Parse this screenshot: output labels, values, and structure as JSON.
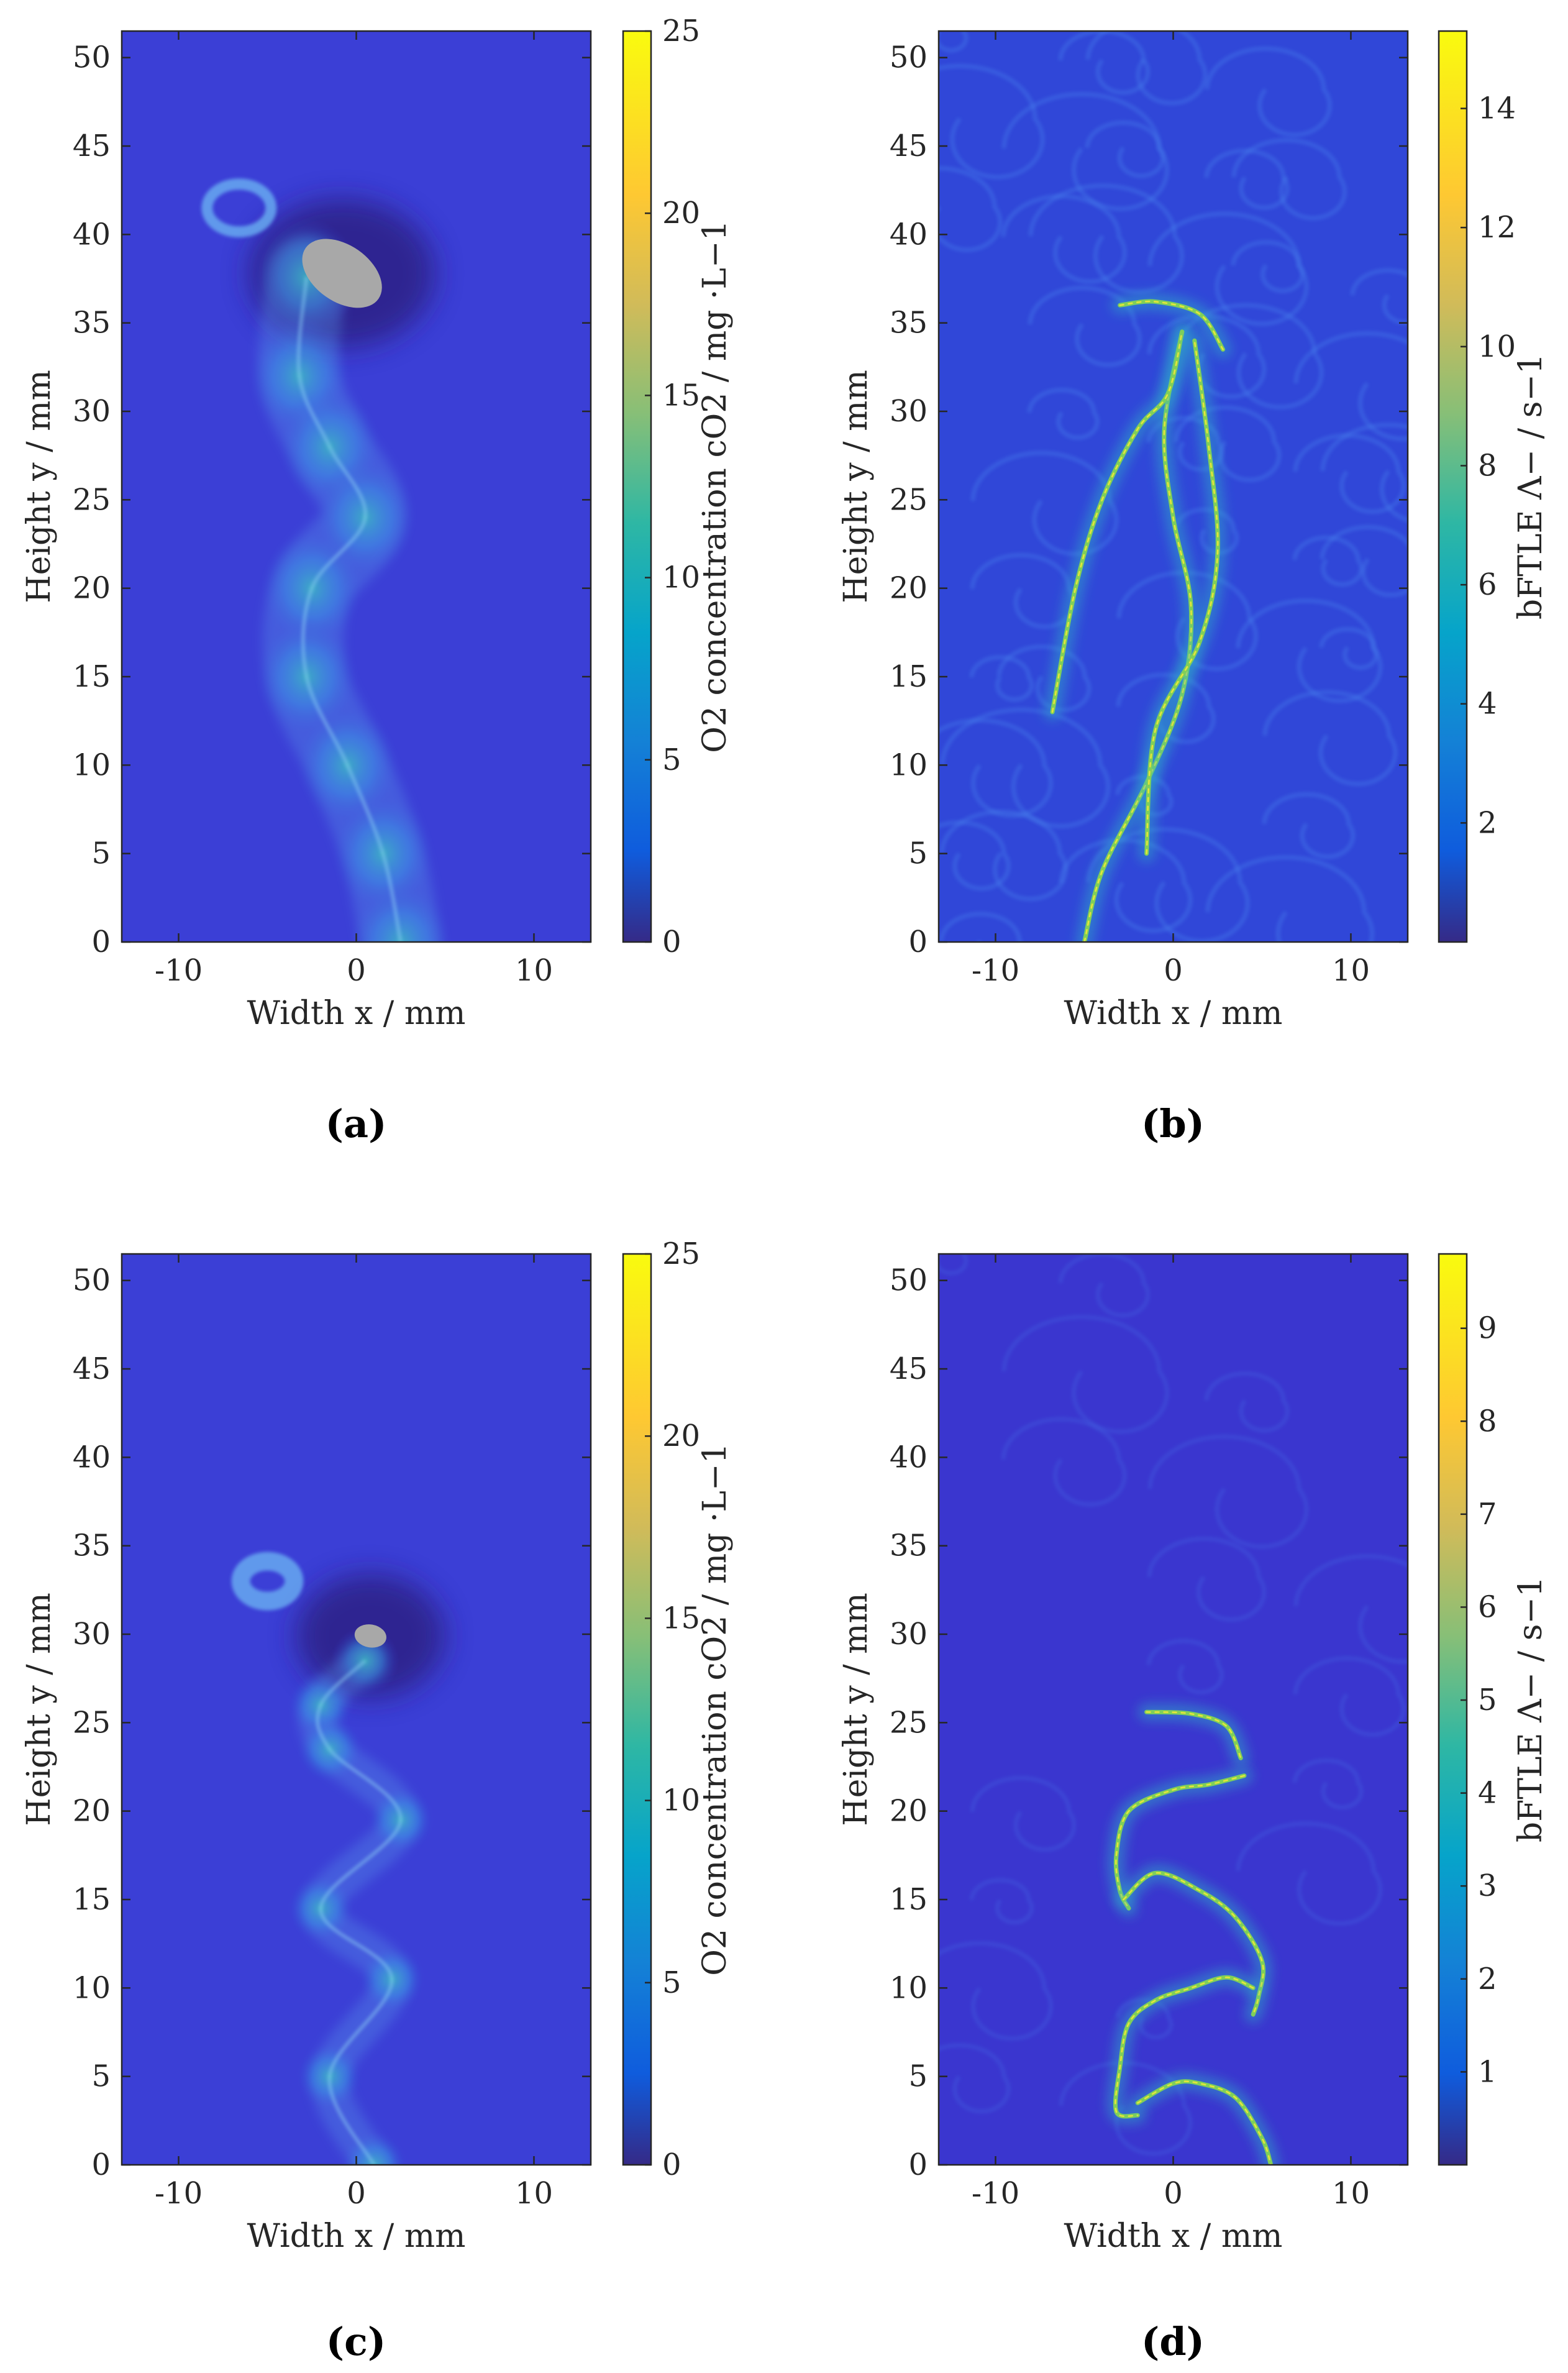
{
  "figure_title": "",
  "colors": {
    "parula_low": "#352a87",
    "parula_field": "#3b3fd6",
    "parula_mid": "#21a9c8",
    "parula_green": "#7ccd5c",
    "parula_high": "#f9fb0e",
    "particle_gray": "#a8a8a8"
  },
  "chart_data": [
    {
      "id": "a",
      "panel_label": "(a)",
      "type": "heatmap",
      "field": "oxygen_concentration",
      "xlabel": "Width x / mm",
      "ylabel": "Height y / mm",
      "xlim": [
        -13.2,
        13.2
      ],
      "ylim": [
        0,
        51.5
      ],
      "xticks": [
        -10,
        0,
        10
      ],
      "xtick_labels": [
        "-10",
        "0",
        "10"
      ],
      "yticks": [
        0,
        5,
        10,
        15,
        20,
        25,
        30,
        35,
        40,
        45,
        50
      ],
      "ytick_labels": [
        "0",
        "5",
        "10",
        "15",
        "20",
        "25",
        "30",
        "35",
        "40",
        "45",
        "50"
      ],
      "colorbar_label": "O2 concentration cO2 / mg ·L−1",
      "colorbar_range": [
        0,
        25
      ],
      "colorbar_ticks": [
        0,
        5,
        10,
        15,
        20,
        25
      ],
      "colorbar_tick_labels": [
        "0",
        "5",
        "10",
        "15",
        "20",
        "25"
      ],
      "particle": {
        "x": -0.8,
        "y": 37.8,
        "major_axis": 5.0,
        "minor_axis": 3.2,
        "angle_deg": 35
      },
      "wake_path": [
        [
          -2.8,
          37.6
        ],
        [
          -3.2,
          32
        ],
        [
          -1.5,
          28
        ],
        [
          0.5,
          24
        ],
        [
          -2.5,
          20
        ],
        [
          -2.8,
          15
        ],
        [
          -0.5,
          10
        ],
        [
          1.5,
          5
        ],
        [
          2.5,
          0
        ]
      ],
      "vortex_ring": {
        "x": -6.6,
        "y": 41.5,
        "size": 1.8
      }
    },
    {
      "id": "b",
      "panel_label": "(b)",
      "type": "heatmap",
      "field": "bFTLE",
      "xlabel": "Width x / mm",
      "ylabel": "Height y / mm",
      "xlim": [
        -13.2,
        13.2
      ],
      "ylim": [
        0,
        51.5
      ],
      "xticks": [
        -10,
        0,
        10
      ],
      "xtick_labels": [
        "-10",
        "0",
        "10"
      ],
      "yticks": [
        0,
        5,
        10,
        15,
        20,
        25,
        30,
        35,
        40,
        45,
        50
      ],
      "ytick_labels": [
        "0",
        "5",
        "10",
        "15",
        "20",
        "25",
        "30",
        "35",
        "40",
        "45",
        "50"
      ],
      "colorbar_label": "bFTLE Λ− / s−1",
      "colorbar_range": [
        0,
        15.3
      ],
      "colorbar_ticks": [
        2,
        4,
        6,
        8,
        10,
        12,
        14
      ],
      "colorbar_tick_labels": [
        "2",
        "4",
        "6",
        "8",
        "10",
        "12",
        "14"
      ],
      "ridges": [
        [
          [
            -5,
            0
          ],
          [
            -4,
            4
          ],
          [
            -1.5,
            9
          ],
          [
            0.5,
            14
          ],
          [
            1,
            19
          ],
          [
            0,
            24
          ],
          [
            -0.5,
            29
          ],
          [
            0.5,
            34.5
          ]
        ],
        [
          [
            -6.8,
            13
          ],
          [
            -5.5,
            20
          ],
          [
            -4,
            25
          ],
          [
            -2,
            29
          ],
          [
            -0.3,
            31
          ],
          [
            0.5,
            34.5
          ]
        ],
        [
          [
            -1.5,
            5
          ],
          [
            -1,
            12
          ],
          [
            1.5,
            17
          ],
          [
            2.5,
            22
          ],
          [
            2,
            28
          ],
          [
            1.2,
            34
          ]
        ],
        [
          [
            -3,
            36
          ],
          [
            -1,
            36.2
          ],
          [
            1.5,
            35.5
          ],
          [
            2.8,
            33.5
          ]
        ]
      ]
    },
    {
      "id": "c",
      "panel_label": "(c)",
      "type": "heatmap",
      "field": "oxygen_concentration",
      "xlabel": "Width x / mm",
      "ylabel": "Height y / mm",
      "xlim": [
        -13.2,
        13.2
      ],
      "ylim": [
        0,
        51.5
      ],
      "xticks": [
        -10,
        0,
        10
      ],
      "xtick_labels": [
        "-10",
        "0",
        "10"
      ],
      "yticks": [
        0,
        5,
        10,
        15,
        20,
        25,
        30,
        35,
        40,
        45,
        50
      ],
      "ytick_labels": [
        "0",
        "5",
        "10",
        "15",
        "20",
        "25",
        "30",
        "35",
        "40",
        "45",
        "50"
      ],
      "colorbar_label": "O2 concentration cO2 / mg ·L−1",
      "colorbar_range": [
        0,
        25
      ],
      "colorbar_ticks": [
        0,
        5,
        10,
        15,
        20,
        25
      ],
      "colorbar_tick_labels": [
        "0",
        "5",
        "10",
        "15",
        "20",
        "25"
      ],
      "particle": {
        "x": 0.8,
        "y": 29.9,
        "major_axis": 1.8,
        "minor_axis": 1.3,
        "angle_deg": 10
      },
      "wake_path": [
        [
          0.5,
          28.5
        ],
        [
          -2,
          26
        ],
        [
          -1.5,
          23.5
        ],
        [
          2.5,
          19.5
        ],
        [
          -2,
          14.5
        ],
        [
          2,
          10.5
        ],
        [
          -1.5,
          5
        ],
        [
          1,
          0
        ]
      ],
      "vortex_ring": {
        "x": -5,
        "y": 33,
        "size": 1.5
      }
    },
    {
      "id": "d",
      "panel_label": "(d)",
      "type": "heatmap",
      "field": "bFTLE",
      "xlabel": "Width x / mm",
      "ylabel": "Height y / mm",
      "xlim": [
        -13.2,
        13.2
      ],
      "ylim": [
        0,
        51.5
      ],
      "xticks": [
        -10,
        0,
        10
      ],
      "xtick_labels": [
        "-10",
        "0",
        "10"
      ],
      "yticks": [
        0,
        5,
        10,
        15,
        20,
        25,
        30,
        35,
        40,
        45,
        50
      ],
      "ytick_labels": [
        "0",
        "5",
        "10",
        "15",
        "20",
        "25",
        "30",
        "35",
        "40",
        "45",
        "50"
      ],
      "colorbar_label": "bFTLE Λ− / s−1",
      "colorbar_range": [
        0,
        9.8
      ],
      "colorbar_ticks": [
        1,
        2,
        3,
        4,
        5,
        6,
        7,
        8,
        9
      ],
      "colorbar_tick_labels": [
        "1",
        "2",
        "3",
        "4",
        "5",
        "6",
        "7",
        "8",
        "9"
      ],
      "ridges": [
        [
          [
            -1.5,
            25.6
          ],
          [
            1,
            25.5
          ],
          [
            3,
            24.8
          ],
          [
            3.8,
            23
          ]
        ],
        [
          [
            4,
            22
          ],
          [
            2,
            21.5
          ],
          [
            0,
            21.2
          ],
          [
            -2.5,
            20
          ],
          [
            -3.2,
            17.5
          ],
          [
            -3,
            15.5
          ],
          [
            -2.5,
            14.5
          ]
        ],
        [
          [
            -2.8,
            15
          ],
          [
            -1,
            16.5
          ],
          [
            1.5,
            15.5
          ],
          [
            3.5,
            14
          ],
          [
            5,
            11.5
          ],
          [
            4.8,
            9.5
          ],
          [
            4.5,
            8.5
          ]
        ],
        [
          [
            4.5,
            10
          ],
          [
            3,
            10.6
          ],
          [
            1,
            10
          ],
          [
            -1,
            9.3
          ],
          [
            -2.5,
            8
          ],
          [
            -3,
            5.5
          ],
          [
            -3.2,
            3
          ],
          [
            -2,
            2.8
          ]
        ],
        [
          [
            -2,
            3.5
          ],
          [
            0,
            4.6
          ],
          [
            1.5,
            4.6
          ],
          [
            3.5,
            3.8
          ],
          [
            5,
            1.5
          ],
          [
            5.5,
            0
          ]
        ]
      ]
    }
  ]
}
